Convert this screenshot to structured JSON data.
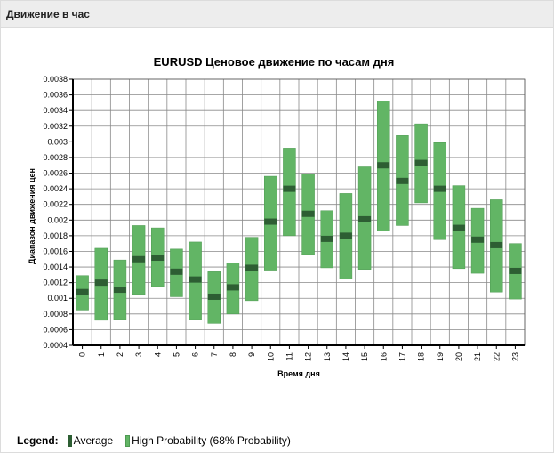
{
  "panel": {
    "title": "Движение в час"
  },
  "legend": {
    "label": "Legend:",
    "items": [
      {
        "label": "Average",
        "color": "#2d5e33"
      },
      {
        "label": "High Probability (68% Probability)",
        "color": "#62b565"
      }
    ]
  },
  "chart_data": {
    "type": "bar",
    "title": "EURUSD Ценовое движение по часам дня",
    "xlabel": "Время дня",
    "ylabel": "Диапазон движения цен",
    "ylim": [
      0.0004,
      0.0038
    ],
    "yticks": [
      "0.0004",
      "0.0006",
      "0.0008",
      "0.001",
      "0.0012",
      "0.0014",
      "0.0016",
      "0.0018",
      "0.002",
      "0.0022",
      "0.0024",
      "0.0026",
      "0.0028",
      "0.003",
      "0.0032",
      "0.0034",
      "0.0036",
      "0.0038"
    ],
    "categories": [
      "0",
      "1",
      "2",
      "3",
      "4",
      "5",
      "6",
      "7",
      "8",
      "9",
      "10",
      "11",
      "12",
      "13",
      "14",
      "15",
      "16",
      "17",
      "18",
      "19",
      "20",
      "21",
      "22",
      "23"
    ],
    "grid": true,
    "colors": {
      "range": "#62b565",
      "average": "#2d5e33",
      "grid": "#8a8a8a"
    },
    "series": [
      {
        "name": "High Probability (68% Probability)",
        "low": [
          0.00085,
          0.00072,
          0.00073,
          0.00105,
          0.00115,
          0.00102,
          0.00073,
          0.00068,
          0.0008,
          0.00097,
          0.00136,
          0.0018,
          0.00156,
          0.00139,
          0.00125,
          0.00137,
          0.00186,
          0.00193,
          0.00222,
          0.00175,
          0.00138,
          0.00132,
          0.00108,
          0.00099
        ],
        "high": [
          0.00129,
          0.00164,
          0.00149,
          0.00193,
          0.0019,
          0.00163,
          0.00172,
          0.00134,
          0.00145,
          0.00178,
          0.00256,
          0.00292,
          0.00259,
          0.00212,
          0.00234,
          0.00268,
          0.00352,
          0.00308,
          0.00323,
          0.00299,
          0.00244,
          0.00215,
          0.00226,
          0.0017
        ]
      },
      {
        "name": "Average",
        "values": [
          0.00108,
          0.0012,
          0.00111,
          0.0015,
          0.00152,
          0.00134,
          0.00124,
          0.00102,
          0.00114,
          0.00139,
          0.00198,
          0.0024,
          0.00208,
          0.00176,
          0.0018,
          0.00201,
          0.0027,
          0.0025,
          0.00273,
          0.0024,
          0.0019,
          0.00175,
          0.00168,
          0.00135
        ]
      }
    ]
  }
}
